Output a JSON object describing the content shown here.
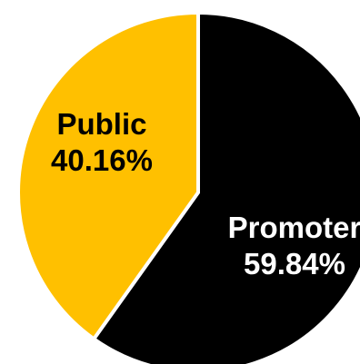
{
  "chart_data": {
    "type": "pie",
    "slices": [
      {
        "label": "Promoter",
        "value_text": "59.84%",
        "value": 59.84,
        "color": "#000000",
        "text_color": "#ffffff"
      },
      {
        "label": "Public",
        "value_text": "40.16%",
        "value": 40.16,
        "color": "#FFC000",
        "text_color": "#000000"
      }
    ],
    "start_angle_deg": 0,
    "direction": "clockwise",
    "slice_border_color": "#ffffff"
  }
}
